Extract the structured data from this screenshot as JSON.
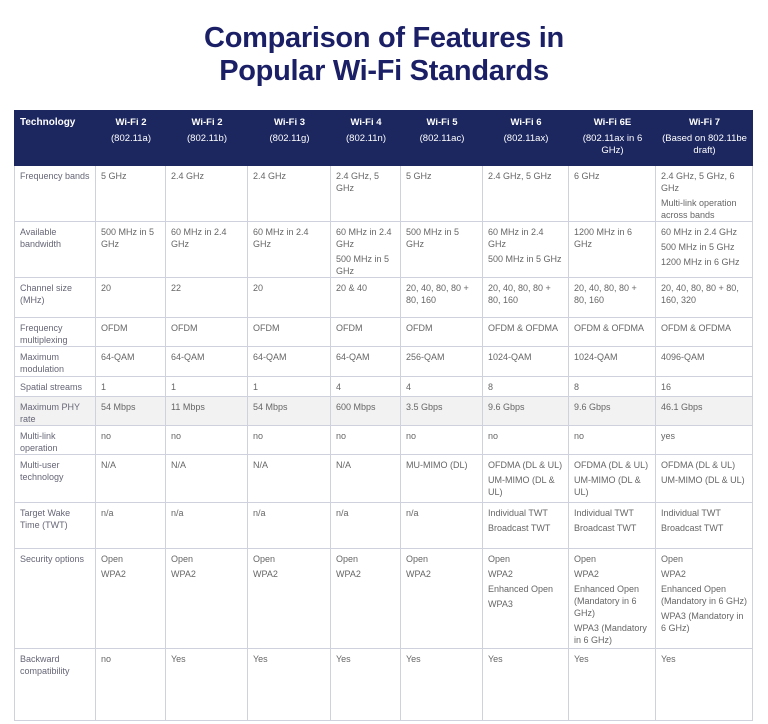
{
  "title": [
    "Comparison of Features in",
    "Popular Wi-Fi Standards"
  ],
  "table": {
    "header": {
      "label": "Technology",
      "columns": [
        {
          "name": "Wi-Fi 2",
          "standard": "(802.11a)"
        },
        {
          "name": "Wi-Fi 2",
          "standard": "(802.11b)"
        },
        {
          "name": "Wi-Fi 3",
          "standard": "(802.11g)"
        },
        {
          "name": "Wi-Fi 4",
          "standard": "(802.11n)"
        },
        {
          "name": "Wi-Fi 5",
          "standard": "(802.11ac)"
        },
        {
          "name": "Wi-Fi 6",
          "standard": "(802.11ax)"
        },
        {
          "name": "Wi-Fi 6E",
          "standard": "(802.11ax in 6 GHz)"
        },
        {
          "name": "Wi-Fi 7",
          "standard": "(Based on 802.11be draft)"
        }
      ]
    },
    "rows": [
      {
        "label": "Frequency bands",
        "cells": [
          "5 GHz",
          "2.4 GHz",
          "2.4 GHz",
          "2.4 GHz, 5 GHz",
          "5 GHz",
          "2.4 GHz, 5 GHz",
          "6 GHz",
          [
            "2.4 GHz, 5 GHz, 6 GHz",
            "Multi-link operation across bands"
          ]
        ]
      },
      {
        "label": "Available bandwidth",
        "cells": [
          "500 MHz in 5 GHz",
          "60 MHz in 2.4 GHz",
          "60 MHz in 2.4 GHz",
          [
            "60 MHz in 2.4 GHz",
            "500 MHz in 5 GHz"
          ],
          "500 MHz in 5 GHz",
          [
            "60 MHz in 2.4 GHz",
            "500 MHz in 5 GHz"
          ],
          "1200 MHz in 6 GHz",
          [
            "60 MHz in 2.4 GHz",
            "500 MHz in 5 GHz",
            "1200 MHz in 6 GHz"
          ]
        ]
      },
      {
        "label": "Channel size (MHz)",
        "cells": [
          "20",
          "22",
          "20",
          "20 & 40",
          "20, 40, 80, 80 + 80, 160",
          "20, 40, 80, 80 + 80, 160",
          "20, 40, 80, 80 + 80, 160",
          "20, 40, 80, 80 + 80, 160, 320"
        ]
      },
      {
        "label": "Frequency multiplexing",
        "cells": [
          "OFDM",
          "OFDM",
          "OFDM",
          "OFDM",
          "OFDM",
          "OFDM & OFDMA",
          "OFDM & OFDMA",
          "OFDM & OFDMA"
        ]
      },
      {
        "label": "Maximum modulation",
        "cells": [
          "64-QAM",
          "64-QAM",
          "64-QAM",
          "64-QAM",
          "256-QAM",
          "1024-QAM",
          "1024-QAM",
          "4096-QAM"
        ]
      },
      {
        "label": "Spatial streams",
        "cells": [
          "1",
          "1",
          "1",
          "4",
          "4",
          "8",
          "8",
          "16"
        ]
      },
      {
        "label": "Maximum PHY rate",
        "cells": [
          "54 Mbps",
          "11 Mbps",
          "54 Mbps",
          "600 Mbps",
          "3.5 Gbps",
          "9.6 Gbps",
          "9.6 Gbps",
          "46.1 Gbps"
        ]
      },
      {
        "label": "Multi-link operation",
        "cells": [
          "no",
          "no",
          "no",
          "no",
          "no",
          "no",
          "no",
          "yes"
        ]
      },
      {
        "label": "Multi-user technology",
        "cells": [
          "N/A",
          "N/A",
          "N/A",
          "N/A",
          "MU-MIMO (DL)",
          [
            "OFDMA (DL & UL)",
            "UM-MIMO (DL & UL)"
          ],
          [
            "OFDMA (DL & UL)",
            "UM-MIMO (DL & UL)"
          ],
          [
            "OFDMA (DL & UL)",
            "UM-MIMO (DL & UL)"
          ]
        ]
      },
      {
        "label": "Target Wake Time (TWT)",
        "cells": [
          "n/a",
          "n/a",
          "n/a",
          "n/a",
          "n/a",
          [
            "Individual TWT",
            "Broadcast TWT"
          ],
          [
            "Individual TWT",
            "Broadcast TWT"
          ],
          [
            "Individual TWT",
            "Broadcast TWT"
          ]
        ]
      },
      {
        "label": "Security options",
        "cells": [
          [
            "Open",
            "WPA2"
          ],
          [
            "Open",
            "WPA2"
          ],
          [
            "Open",
            "WPA2"
          ],
          [
            "Open",
            "WPA2"
          ],
          [
            "Open",
            "WPA2"
          ],
          [
            "Open",
            "WPA2",
            "Enhanced Open",
            "WPA3"
          ],
          [
            "Open",
            "WPA2",
            "Enhanced Open (Mandatory in 6 GHz)",
            "WPA3 (Mandatory in 6 GHz)"
          ],
          [
            "Open",
            "WPA2",
            "Enhanced Open (Mandatory in 6 GHz)",
            "WPA3 (Mandatory in 6 GHz)"
          ]
        ]
      },
      {
        "label": "Backward compatibility",
        "cells": [
          "no",
          "Yes",
          "Yes",
          "Yes",
          "Yes",
          "Yes",
          "Yes",
          "Yes"
        ]
      }
    ]
  }
}
